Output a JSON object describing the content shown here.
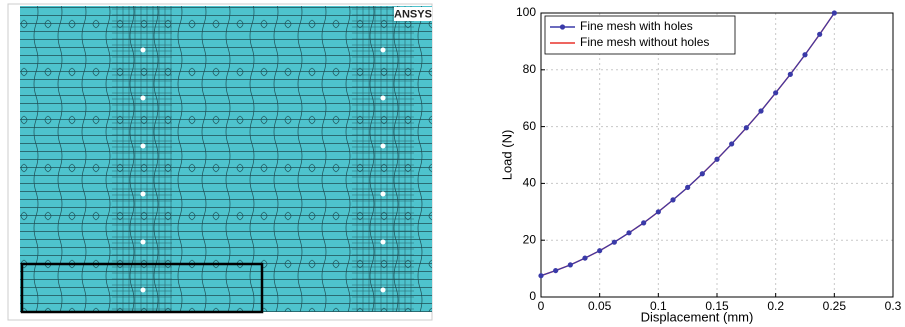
{
  "logo": "ANSYS",
  "chart_data": {
    "type": "line",
    "x_label": "Displacement (mm)",
    "y_label": "Load (N)",
    "x": [
      0,
      0.0125,
      0.025,
      0.0375,
      0.05,
      0.0625,
      0.075,
      0.0875,
      0.1,
      0.1125,
      0.125,
      0.1375,
      0.15,
      0.1625,
      0.175,
      0.1875,
      0.2,
      0.2125,
      0.225,
      0.2375,
      0.25
    ],
    "series": [
      {
        "name": "Fine mesh with holes",
        "color": "#3a3aa8",
        "marker": true,
        "values": [
          7.5,
          9.3,
          11.3,
          13.7,
          16.3,
          19.3,
          22.6,
          26.1,
          30.0,
          34.2,
          38.6,
          43.4,
          48.5,
          53.9,
          59.6,
          65.5,
          71.9,
          78.4,
          85.3,
          92.5,
          100.0
        ]
      },
      {
        "name": "Fine mesh without holes",
        "color": "#e8322c",
        "marker": false,
        "values": [
          7.5,
          9.3,
          11.3,
          13.7,
          16.3,
          19.3,
          22.6,
          26.1,
          30.0,
          34.2,
          38.6,
          43.4,
          48.5,
          53.9,
          59.6,
          65.5,
          71.9,
          78.4,
          85.3,
          92.5,
          100.0
        ]
      }
    ],
    "xlim": [
      0,
      0.3
    ],
    "ylim": [
      0,
      100
    ],
    "xticks": [
      0,
      0.05,
      0.1,
      0.15,
      0.2,
      0.25,
      0.3
    ],
    "yticks": [
      0,
      20,
      40,
      60,
      80,
      100
    ],
    "grid": true,
    "legend": "upper-left"
  }
}
